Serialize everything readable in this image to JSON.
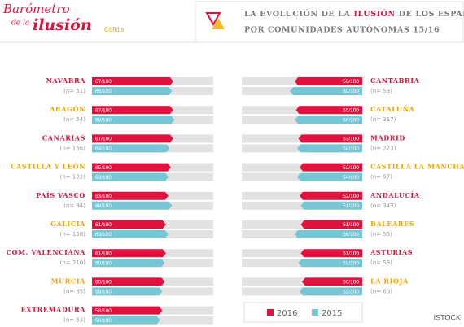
{
  "branding": {
    "logo": [
      "Barómetro",
      "de la",
      "ilusión"
    ],
    "sponsor": "Cofidis",
    "credit": "ISTOCK"
  },
  "chart_data": [
    {
      "type": "bar",
      "orientation": "horizontal",
      "direction": "right",
      "title": [
        "LA EVOLUCIÓN DE LA",
        "ILUSIÓN",
        "DE LOS ESPAÑOLES",
        "POR COMUNIDADES AUTÓNOMAS 15/16"
      ],
      "categories": [
        "NAVARRA",
        "ARAGÓN",
        "CANARIAS",
        "CASTILLA Y LEÓN",
        "PAÍS VASCO",
        "GALICIA",
        "COM. VALENCIANA",
        "MURCIA",
        "EXTREMADURA"
      ],
      "sample_sizes": [
        "(n= 51)",
        "(n= 54)",
        "(n= 156)",
        "(n= 122)",
        "(n= 94)",
        "(n= 158)",
        "(n= 210)",
        "(n= 65)",
        "(n= 53)"
      ],
      "series": [
        {
          "name": "2016",
          "color": "#e2123e",
          "values": [
            67,
            67,
            67,
            65,
            63,
            61,
            61,
            60,
            58
          ],
          "value_labels": [
            "67/100",
            "67/100",
            "67/100",
            "65/100",
            "63/100",
            "61/100",
            "61/100",
            "60/100",
            "58/100"
          ]
        },
        {
          "name": "2015",
          "color": "#76c6d6",
          "values": [
            66,
            68,
            64,
            63,
            66,
            63,
            60,
            58,
            56
          ],
          "value_labels": [
            "66/100",
            "68/100",
            "64/100",
            "63/100",
            "66/100",
            "63/100",
            "60/100",
            "58/100",
            "56/100"
          ]
        }
      ],
      "xlim": [
        0,
        100
      ]
    },
    {
      "type": "bar",
      "orientation": "horizontal",
      "direction": "left",
      "categories": [
        "CANTABRIA",
        "CATALUÑA",
        "MADRID",
        "CASTILLA LA MANCHA",
        "ANDALUCÍA",
        "BALEARES",
        "ASTURIAS",
        "LA RIOJA"
      ],
      "sample_sizes": [
        "(n= 53)",
        "(n= 317)",
        "(n= 273)",
        "(n= 97)",
        "(n= 343)",
        "(n= 55)",
        "(n= 53)",
        "(n= 60)"
      ],
      "series": [
        {
          "values": [
            56,
            55,
            53,
            52,
            52,
            51,
            51,
            50
          ],
          "value_labels": [
            "56/100",
            "55/100",
            "53/100",
            "52/100",
            "52/100",
            "51/100",
            "51/100",
            "50/100"
          ]
        },
        {
          "values": [
            60,
            56,
            54,
            54,
            51,
            56,
            53,
            52
          ],
          "value_labels": [
            "60/100",
            "56/100",
            "54/100",
            "54/100",
            "51/100",
            "56/100",
            "53/100",
            "52/100"
          ]
        }
      ],
      "xlim": [
        0,
        100
      ]
    }
  ]
}
